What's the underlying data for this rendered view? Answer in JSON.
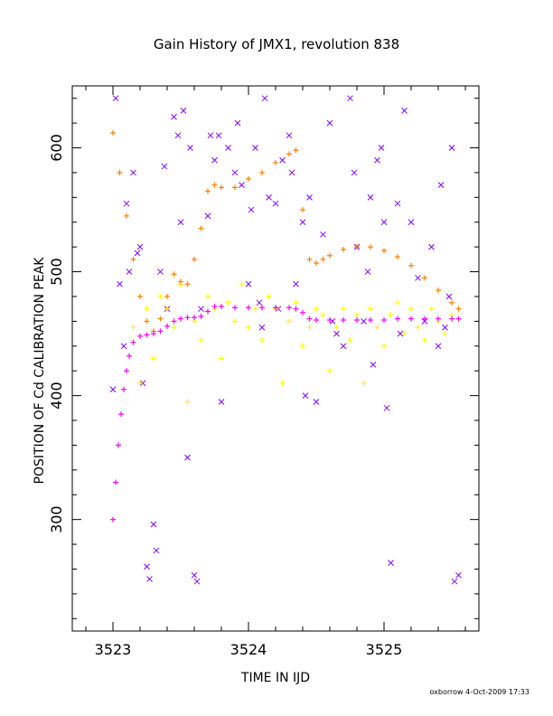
{
  "chart_data": {
    "type": "scatter",
    "title": "Gain History of JMX1, revolution 838",
    "xlabel": "TIME IN IJD",
    "ylabel": "POSITION OF Cd CALIBRATION PEAK",
    "xlim": [
      3522.7,
      3525.7
    ],
    "ylim": [
      210,
      650
    ],
    "x_ticks": [
      3523,
      3524,
      3525
    ],
    "x_tick_labels": [
      "3523",
      "3524",
      "3525"
    ],
    "y_ticks": [
      300,
      400,
      500,
      600
    ],
    "y_tick_labels": [
      "300",
      "400",
      "500",
      "600"
    ],
    "grid": false,
    "legend": "none",
    "footer": "oxborrow  4-Oct-2009 17:33",
    "series": [
      {
        "marker": "x",
        "color": "#7f00ff",
        "x": [
          3523.0,
          3523.02,
          3523.05,
          3523.08,
          3523.1,
          3523.12,
          3523.15,
          3523.18,
          3523.2,
          3523.22,
          3523.25,
          3523.27,
          3523.3,
          3523.32,
          3523.35,
          3523.38,
          3523.4,
          3523.45,
          3523.48,
          3523.5,
          3523.52,
          3523.55,
          3523.57,
          3523.6,
          3523.62,
          3523.65,
          3523.7,
          3523.72,
          3523.75,
          3523.78,
          3523.8,
          3523.85,
          3523.9,
          3523.92,
          3523.95,
          3524.0,
          3524.02,
          3524.05,
          3524.08,
          3524.1,
          3524.12,
          3524.15,
          3524.2,
          3524.22,
          3524.25,
          3524.3,
          3524.32,
          3524.35,
          3524.4,
          3524.42,
          3524.45,
          3524.5,
          3524.55,
          3524.6,
          3524.62,
          3524.65,
          3524.7,
          3524.75,
          3524.78,
          3524.8,
          3524.85,
          3524.88,
          3524.9,
          3524.92,
          3524.95,
          3524.98,
          3525.0,
          3525.02,
          3525.05,
          3525.1,
          3525.12,
          3525.15,
          3525.2,
          3525.25,
          3525.3,
          3525.35,
          3525.4,
          3525.42,
          3525.45,
          3525.48,
          3525.5,
          3525.52,
          3525.55
        ],
        "y": [
          405,
          640,
          490,
          440,
          555,
          500,
          580,
          515,
          520,
          410,
          262,
          252,
          296,
          275,
          500,
          585,
          470,
          625,
          610,
          540,
          630,
          350,
          600,
          255,
          250,
          470,
          545,
          610,
          590,
          610,
          395,
          600,
          580,
          620,
          570,
          490,
          550,
          600,
          475,
          455,
          640,
          560,
          555,
          470,
          590,
          610,
          580,
          490,
          540,
          400,
          560,
          395,
          530,
          620,
          460,
          450,
          440,
          640,
          580,
          520,
          460,
          500,
          560,
          425,
          590,
          600,
          540,
          390,
          265,
          555,
          450,
          630,
          540,
          495,
          460,
          520,
          440,
          570,
          455,
          480,
          600,
          250,
          255
        ]
      },
      {
        "marker": "+",
        "color": "#ffff00",
        "x": [
          3523.15,
          3523.2,
          3523.25,
          3523.3,
          3523.35,
          3523.4,
          3523.45,
          3523.5,
          3523.55,
          3523.6,
          3523.65,
          3523.7,
          3523.75,
          3523.8,
          3523.85,
          3523.9,
          3523.95,
          3524.0,
          3524.05,
          3524.1,
          3524.15,
          3524.2,
          3524.25,
          3524.3,
          3524.35,
          3524.4,
          3524.45,
          3524.5,
          3524.55,
          3524.6,
          3524.65,
          3524.7,
          3524.75,
          3524.8,
          3524.85,
          3524.9,
          3524.95,
          3525.0,
          3525.05,
          3525.1,
          3525.15,
          3525.2,
          3525.25,
          3525.3,
          3525.35,
          3525.4,
          3525.45,
          3525.5
        ],
        "y": [
          455,
          410,
          470,
          430,
          480,
          470,
          455,
          490,
          395,
          460,
          445,
          480,
          470,
          430,
          475,
          460,
          490,
          455,
          470,
          445,
          480,
          470,
          410,
          460,
          475,
          440,
          455,
          470,
          465,
          420,
          455,
          470,
          445,
          465,
          410,
          470,
          455,
          440,
          465,
          475,
          450,
          470,
          455,
          445,
          470,
          460,
          450,
          465
        ]
      },
      {
        "marker": "+",
        "color": "#ff8000",
        "x": [
          3523.0,
          3523.05,
          3523.1,
          3523.15,
          3523.2,
          3523.25,
          3523.3,
          3523.35,
          3523.4,
          3523.45,
          3523.5,
          3523.55,
          3523.6,
          3523.65,
          3523.7,
          3523.75,
          3523.8,
          3523.9,
          3524.0,
          3524.1,
          3524.2,
          3524.3,
          3524.35,
          3524.4,
          3524.45,
          3524.5,
          3524.55,
          3524.6,
          3524.7,
          3524.8,
          3524.9,
          3525.0,
          3525.1,
          3525.2,
          3525.3,
          3525.4,
          3525.5,
          3525.55
        ],
        "y": [
          612,
          580,
          545,
          510,
          480,
          460,
          452,
          462,
          480,
          498,
          492,
          490,
          510,
          535,
          565,
          570,
          568,
          568,
          575,
          580,
          588,
          595,
          598,
          550,
          510,
          507,
          510,
          513,
          518,
          520,
          520,
          517,
          512,
          505,
          495,
          485,
          475,
          470
        ]
      },
      {
        "marker": "+",
        "color": "#ff00ff",
        "x": [
          3523.0,
          3523.02,
          3523.04,
          3523.06,
          3523.08,
          3523.1,
          3523.12,
          3523.15,
          3523.2,
          3523.25,
          3523.3,
          3523.35,
          3523.4,
          3523.45,
          3523.5,
          3523.55,
          3523.6,
          3523.65,
          3523.7,
          3523.75,
          3523.8,
          3523.9,
          3524.0,
          3524.1,
          3524.2,
          3524.3,
          3524.35,
          3524.4,
          3524.45,
          3524.5,
          3524.6,
          3524.7,
          3524.8,
          3524.9,
          3525.0,
          3525.1,
          3525.2,
          3525.3,
          3525.4,
          3525.5,
          3525.55
        ],
        "y": [
          300,
          330,
          360,
          385,
          405,
          420,
          432,
          443,
          448,
          449,
          450,
          452,
          456,
          460,
          462,
          463,
          463,
          464,
          468,
          472,
          472,
          471,
          471,
          471,
          471,
          471,
          470,
          467,
          462,
          461,
          461,
          461,
          461,
          461,
          461,
          462,
          462,
          462,
          462,
          462,
          462
        ]
      }
    ]
  }
}
